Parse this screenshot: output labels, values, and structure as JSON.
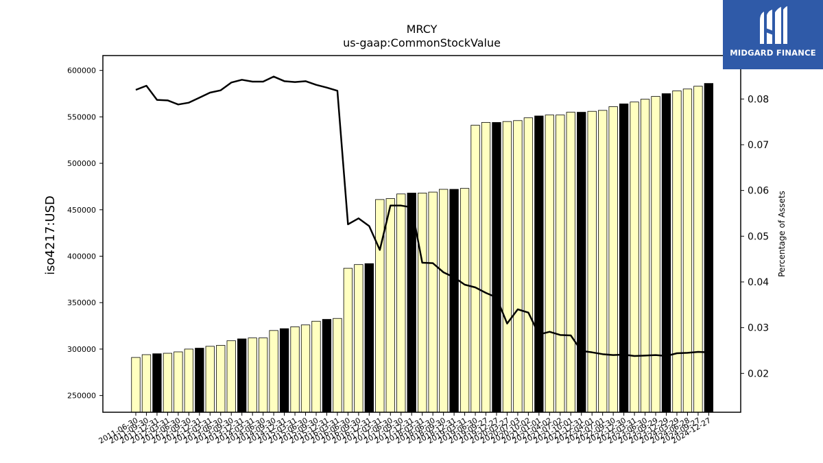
{
  "brand": {
    "name": "MIDGARD FINANCE",
    "color": "#2f5aa8"
  },
  "chart_data": {
    "type": "bar",
    "title": "MRCY",
    "subtitle": "us-gaap:CommonStockValue",
    "ylabel": "iso4217:USD",
    "y2label": "Percentage of Assets",
    "ylim": [
      232000,
      616000
    ],
    "y2lim": [
      0.0115,
      0.0895
    ],
    "yticks": [
      250000,
      300000,
      350000,
      400000,
      450000,
      500000,
      550000,
      600000
    ],
    "y2ticks": [
      0.02,
      0.03,
      0.04,
      0.05,
      0.06,
      0.07,
      0.08
    ],
    "grid": false,
    "colors": {
      "bar_light": "#ffffc0",
      "bar_dark": "#000000",
      "line": "#000000"
    },
    "categories": [
      "2011-06-30",
      "2011-09-30",
      "2011-12-31",
      "2012-03-31",
      "2012-06-30",
      "2012-09-30",
      "2012-12-31",
      "2013-03-31",
      "2013-06-30",
      "2013-09-30",
      "2013-12-31",
      "2014-03-31",
      "2014-06-30",
      "2014-09-30",
      "2014-12-31",
      "2015-03-31",
      "2015-06-30",
      "2015-09-30",
      "2015-12-31",
      "2016-03-31",
      "2016-06-30",
      "2016-09-30",
      "2016-12-31",
      "2017-03-31",
      "2017-06-30",
      "2017-09-30",
      "2017-12-31",
      "2018-03-31",
      "2018-06-30",
      "2018-09-30",
      "2018-12-31",
      "2019-03-31",
      "2019-06-30",
      "2019-09-27",
      "2019-12-27",
      "2020-03-27",
      "2020-07-03",
      "2020-10-02",
      "2021-01-01",
      "2021-04-02",
      "2021-07-02",
      "2021-10-01",
      "2021-12-31",
      "2022-04-01",
      "2022-07-01",
      "2022-09-30",
      "2022-12-30",
      "2023-03-31",
      "2023-06-30",
      "2023-09-29",
      "2023-12-29",
      "2024-03-29",
      "2024-06-28",
      "2024-09-27",
      "2024-12-27"
    ],
    "series": [
      {
        "kind": "bar",
        "values": [
          291000,
          294000,
          295000,
          295500,
          297000,
          300000,
          301000,
          303000,
          304000,
          309000,
          311000,
          312000,
          312000,
          320000,
          322000,
          324000,
          326000,
          330000,
          332000,
          333000,
          387000,
          391000,
          392000,
          461000,
          462000,
          467000,
          468000,
          468000,
          469000,
          472000,
          472000,
          473000,
          541000,
          544000,
          544000,
          545000,
          546000,
          549000,
          551000,
          552000,
          552000,
          555000,
          555000,
          556000,
          557000,
          561000,
          564000,
          566000,
          569000,
          572000,
          575000,
          578000,
          580000,
          583000,
          586000
        ],
        "highlight": [
          false,
          false,
          true,
          false,
          false,
          false,
          true,
          false,
          false,
          false,
          true,
          false,
          false,
          false,
          true,
          false,
          false,
          false,
          true,
          false,
          false,
          false,
          true,
          false,
          false,
          false,
          true,
          false,
          false,
          false,
          true,
          false,
          false,
          false,
          true,
          false,
          false,
          false,
          true,
          false,
          false,
          false,
          true,
          false,
          false,
          false,
          true,
          false,
          false,
          false,
          true,
          false,
          false,
          false,
          true
        ]
      },
      {
        "kind": "line",
        "axis": "right",
        "values": [
          0.082,
          0.0829,
          0.0798,
          0.0797,
          0.0788,
          0.0792,
          0.0803,
          0.0814,
          0.0819,
          0.0836,
          0.0842,
          0.0838,
          0.0838,
          0.0849,
          0.0839,
          0.0837,
          0.0839,
          0.0831,
          0.0825,
          0.0818,
          0.0526,
          0.0539,
          0.0522,
          0.047,
          0.0567,
          0.0567,
          0.0563,
          0.0442,
          0.0441,
          0.0421,
          0.041,
          0.0394,
          0.0388,
          0.0376,
          0.0366,
          0.0309,
          0.034,
          0.0333,
          0.0285,
          0.0291,
          0.0284,
          0.0283,
          0.0249,
          0.0246,
          0.0242,
          0.024,
          0.0241,
          0.0238,
          0.0239,
          0.024,
          0.0238,
          0.0244,
          0.0245,
          0.0247,
          0.0246
        ]
      }
    ]
  }
}
